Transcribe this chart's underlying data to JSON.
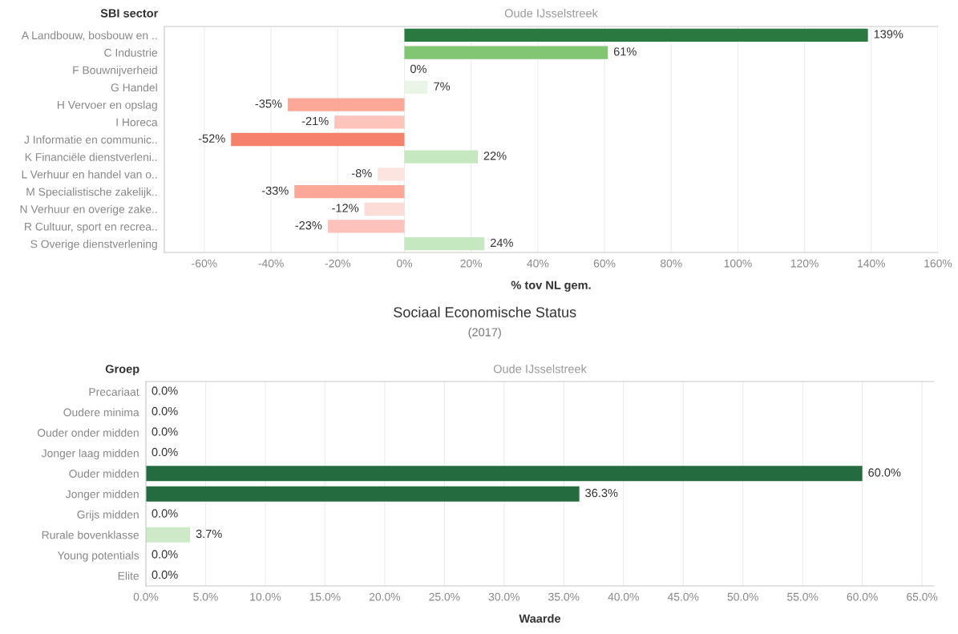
{
  "chart_data": [
    {
      "type": "bar",
      "orientation": "horizontal",
      "ylabel": "SBI sector",
      "xlabel": "% tov NL gem.",
      "annotations": [
        "Oude IJsselstreek"
      ],
      "categories": [
        "A Landbouw, bosbouw en ..",
        "C Industrie",
        "F Bouwnijverheid",
        "G Handel",
        "H Vervoer en opslag",
        "I Horeca",
        "J Informatie en communic..",
        "K Financiële dienstverleni..",
        "L Verhuur en handel van o..",
        "M Specialistische zakelijk..",
        "N Verhuur en overige zake..",
        "R Cultuur, sport en recrea..",
        "S Overige dienstverlening"
      ],
      "values": [
        139,
        61,
        0,
        7,
        -35,
        -21,
        -52,
        22,
        -8,
        -33,
        -12,
        -23,
        24
      ],
      "value_labels": [
        "139%",
        "61%",
        "0%",
        "7%",
        "-35%",
        "-21%",
        "-52%",
        "22%",
        "-8%",
        "-33%",
        "-12%",
        "-23%",
        "24%"
      ],
      "colors": [
        "#2a7940",
        "#82c674",
        "#eaf5e8",
        "#eaf5e8",
        "#fba898",
        "#fdc4bc",
        "#f6826e",
        "#c6e8c0",
        "#fce4e1",
        "#fba898",
        "#fddbd7",
        "#fdc2bb",
        "#c6e8c0"
      ],
      "xlim": [
        -72,
        160
      ],
      "xticks": [
        {
          "value": -60,
          "label": "-60%"
        },
        {
          "value": -40,
          "label": "-40%"
        },
        {
          "value": -20,
          "label": "-20%"
        },
        {
          "value": 0,
          "label": "0%"
        },
        {
          "value": 20,
          "label": "20%"
        },
        {
          "value": 40,
          "label": "40%"
        },
        {
          "value": 60,
          "label": "60%"
        },
        {
          "value": 80,
          "label": "80%"
        },
        {
          "value": 100,
          "label": "100%"
        },
        {
          "value": 120,
          "label": "120%"
        },
        {
          "value": 140,
          "label": "140%"
        },
        {
          "value": 160,
          "label": "160%"
        }
      ],
      "grid": "x",
      "legend": false
    },
    {
      "type": "bar",
      "orientation": "horizontal",
      "title": "Sociaal Economische Status",
      "subtitle": "(2017)",
      "ylabel": "Groep",
      "xlabel": "Waarde",
      "annotations": [
        "Oude IJsselstreek"
      ],
      "categories": [
        "Precariaat",
        "Oudere minima",
        "Ouder onder midden",
        "Jonger laag midden",
        "Ouder midden",
        "Jonger midden",
        "Grijs midden",
        "Rurale bovenklasse",
        "Young potentials",
        "Elite"
      ],
      "values": [
        0,
        0,
        0,
        0,
        60.0,
        36.3,
        0,
        3.7,
        0,
        0
      ],
      "value_labels": [
        "0.0%",
        "0.0%",
        "0.0%",
        "0.0%",
        "60.0%",
        "36.3%",
        "0.0%",
        "3.7%",
        "0.0%",
        "0.0%"
      ],
      "colors": [
        "#f0f0f0",
        "#f0f0f0",
        "#f0f0f0",
        "#f0f0f0",
        "#246b3f",
        "#246b3f",
        "#f0f0f0",
        "#cde9c8",
        "#f0f0f0",
        "#f0f0f0"
      ],
      "xlim": [
        0,
        66
      ],
      "xticks": [
        {
          "value": 0,
          "label": "0.0%"
        },
        {
          "value": 5,
          "label": "5.0%"
        },
        {
          "value": 10,
          "label": "10.0%"
        },
        {
          "value": 15,
          "label": "15.0%"
        },
        {
          "value": 20,
          "label": "20.0%"
        },
        {
          "value": 25,
          "label": "25.0%"
        },
        {
          "value": 30,
          "label": "30.0%"
        },
        {
          "value": 35,
          "label": "35.0%"
        },
        {
          "value": 40,
          "label": "40.0%"
        },
        {
          "value": 45,
          "label": "45.0%"
        },
        {
          "value": 50,
          "label": "50.0%"
        },
        {
          "value": 55,
          "label": "55.0%"
        },
        {
          "value": 60,
          "label": "60.0%"
        },
        {
          "value": 65,
          "label": "65.0%"
        }
      ],
      "grid": "x",
      "legend": false
    }
  ]
}
